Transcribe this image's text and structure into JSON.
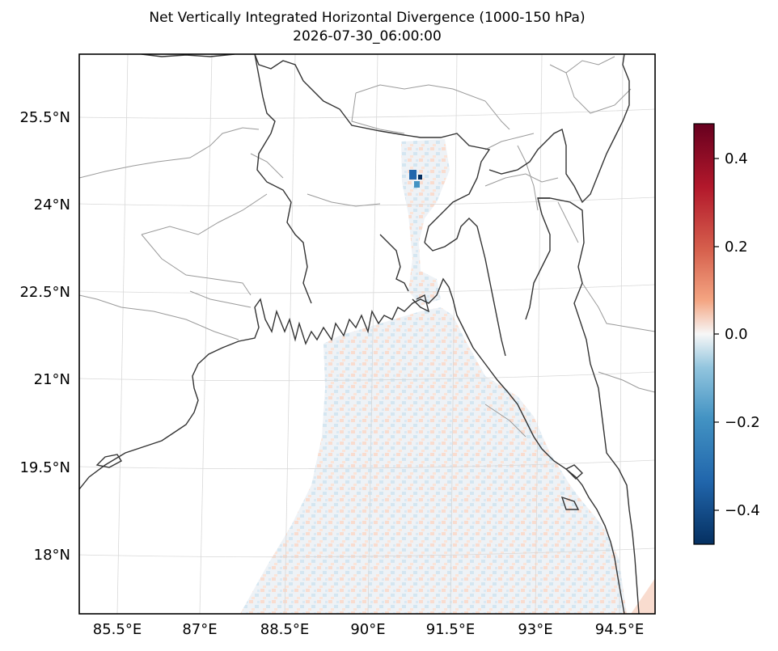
{
  "title": "Net Vertically Integrated Horizontal Divergence (1000-150 hPa)",
  "subtitle": "2026-07-30_06:00:00",
  "map": {
    "projection": "lambert-conformal",
    "lon_labels": [
      "85.5°E",
      "87°E",
      "88.5°E",
      "90°E",
      "91.5°E",
      "93°E",
      "94.5°E"
    ],
    "lat_labels": [
      "25.5°N",
      "24°N",
      "22.5°N",
      "21°N",
      "19.5°N",
      "18°N"
    ],
    "gridlines": true,
    "colormap": "RdBu_r"
  },
  "colorbar": {
    "range": [
      -0.47,
      0.47
    ],
    "tick_labels": [
      "0.4",
      "0.2",
      "0.0",
      "−0.2",
      "−0.4"
    ],
    "colors": {
      "max": "#67001f",
      "pos": "#d6604d",
      "zero": "#f7f7f7",
      "neg": "#4393c3",
      "min": "#053061"
    }
  }
}
